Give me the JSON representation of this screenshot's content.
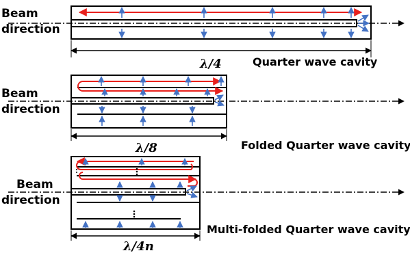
{
  "panels": [
    {
      "beam_label": [
        "Beam",
        "direction"
      ],
      "length_label": "λ/4",
      "caption": "Quarter wave cavity"
    },
    {
      "beam_label": [
        "Beam",
        "direction"
      ],
      "length_label": "λ/8",
      "caption": "Folded Quarter wave cavity"
    },
    {
      "beam_label": [
        "Beam",
        "direction"
      ],
      "length_label": "λ/4n",
      "caption": "Multi-folded Quarter wave cavity"
    }
  ],
  "colors": {
    "current": "#e8211d",
    "field": "#4472c4",
    "outline": "#000000"
  }
}
